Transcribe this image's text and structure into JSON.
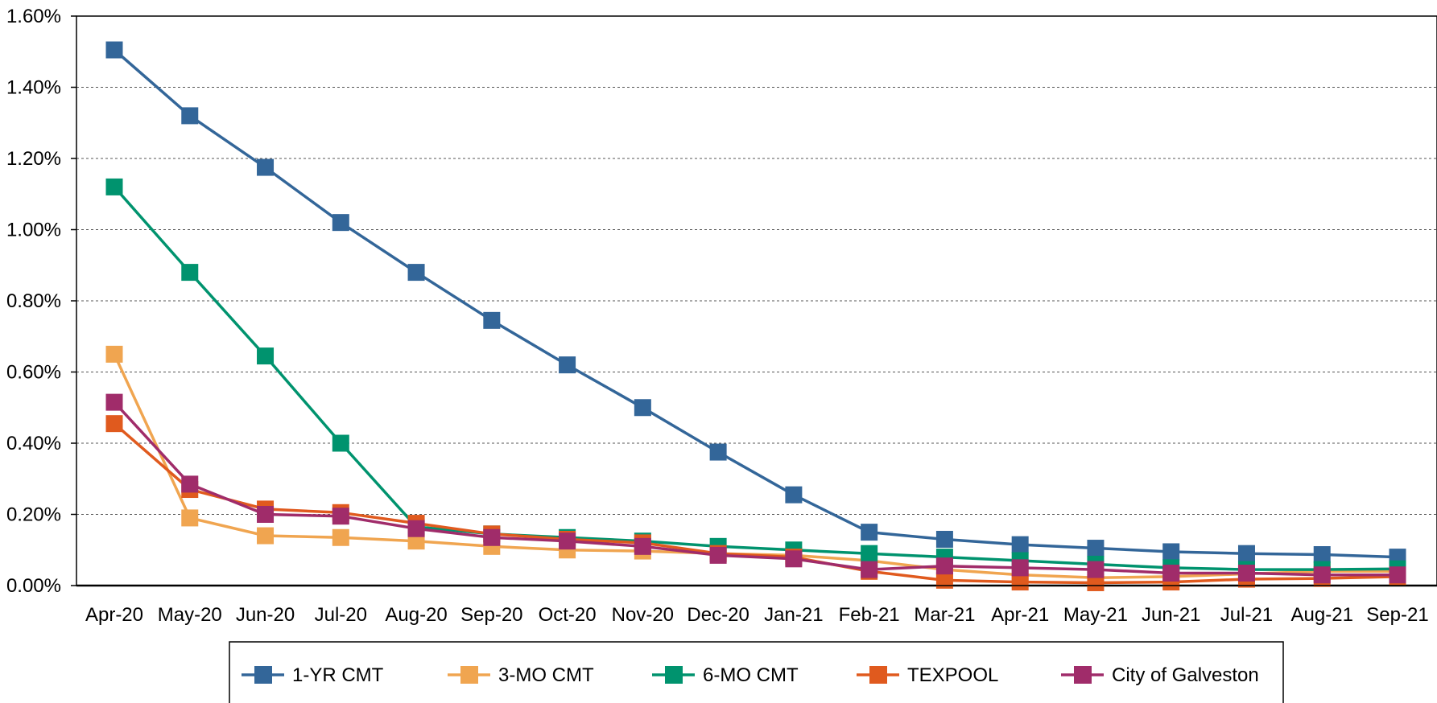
{
  "chart_data": {
    "type": "line",
    "title": "",
    "xlabel": "",
    "ylabel": "",
    "categories": [
      "Apr-20",
      "May-20",
      "Jun-20",
      "Jul-20",
      "Aug-20",
      "Sep-20",
      "Oct-20",
      "Nov-20",
      "Dec-20",
      "Jan-21",
      "Feb-21",
      "Mar-21",
      "Apr-21",
      "May-21",
      "Jun-21",
      "Jul-21",
      "Aug-21",
      "Sep-21"
    ],
    "ylim": [
      0,
      1.6
    ],
    "yticks": [
      0,
      0.2,
      0.4,
      0.6,
      0.8,
      1.0,
      1.2,
      1.4,
      1.6
    ],
    "ytick_labels": [
      "0.00%",
      "0.20%",
      "0.40%",
      "0.60%",
      "0.80%",
      "1.00%",
      "1.20%",
      "1.40%",
      "1.60%"
    ],
    "grid": "horizontal dotted",
    "legend_position": "bottom",
    "series": [
      {
        "name": "1-YR CMT",
        "color": "#336699",
        "values": [
          1.505,
          1.32,
          1.175,
          1.02,
          0.88,
          0.745,
          0.62,
          0.5,
          0.375,
          0.255,
          0.15,
          0.13,
          0.115,
          0.105,
          0.095,
          0.09,
          0.087,
          0.08
        ]
      },
      {
        "name": "3-MO CMT",
        "color": "#F0A550",
        "values": [
          0.65,
          0.19,
          0.14,
          0.135,
          0.125,
          0.11,
          0.1,
          0.097,
          0.09,
          0.085,
          0.07,
          0.045,
          0.03,
          0.022,
          0.025,
          0.033,
          0.04,
          0.04
        ]
      },
      {
        "name": "6-MO CMT",
        "color": "#00936E",
        "values": [
          1.12,
          0.88,
          0.645,
          0.4,
          0.165,
          0.145,
          0.135,
          0.125,
          0.11,
          0.1,
          0.09,
          0.08,
          0.07,
          0.06,
          0.05,
          0.045,
          0.045,
          0.047
        ]
      },
      {
        "name": "TEXPOOL",
        "color": "#E05A1E",
        "values": [
          0.455,
          0.27,
          0.215,
          0.205,
          0.175,
          0.145,
          0.13,
          0.12,
          0.09,
          0.08,
          0.04,
          0.015,
          0.01,
          0.008,
          0.01,
          0.018,
          0.02,
          0.025
        ]
      },
      {
        "name": "City of Galveston",
        "color": "#A02C6A",
        "values": [
          0.515,
          0.285,
          0.2,
          0.195,
          0.16,
          0.135,
          0.125,
          0.11,
          0.085,
          0.075,
          0.045,
          0.055,
          0.05,
          0.045,
          0.035,
          0.035,
          0.03,
          0.03
        ]
      }
    ]
  }
}
